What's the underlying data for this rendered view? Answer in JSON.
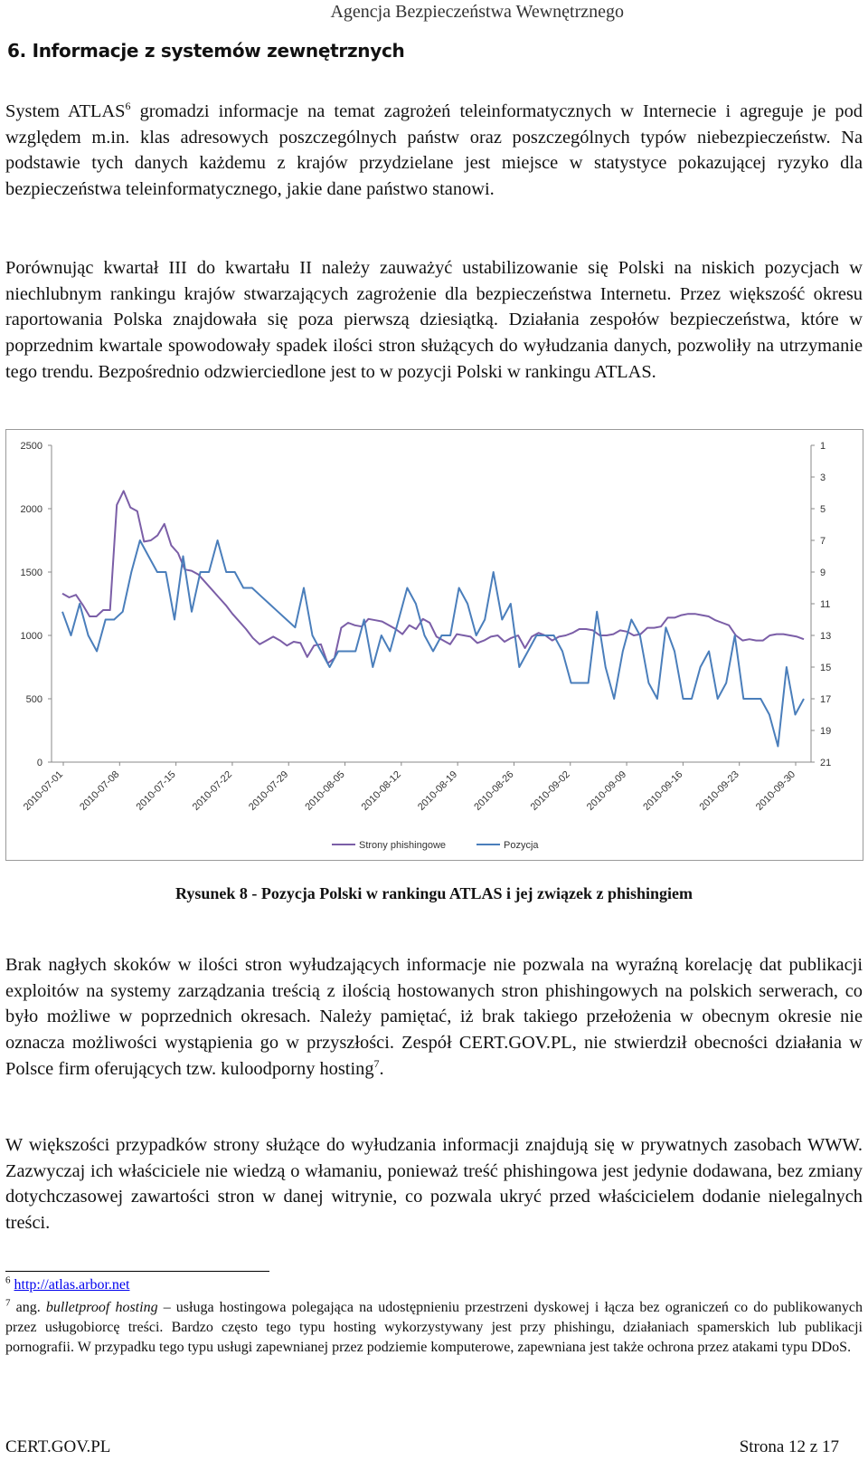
{
  "header": {
    "org": "Agencja Bezpieczeństwa Wewnętrznego"
  },
  "section": {
    "heading": "6.   Informacje z systemów zewnętrznych"
  },
  "paragraphs": {
    "p1_a": "System ATLAS",
    "p1_sup": "6",
    "p1_b": " gromadzi informacje na temat zagrożeń teleinformatycznych w Internecie i agreguje je pod względem m.in. klas adresowych poszczególnych państw oraz poszczególnych typów niebezpieczeństw. Na podstawie tych danych każdemu z krajów przydzielane jest miejsce w statystyce pokazującej ryzyko dla bezpieczeństwa teleinformatycznego, jakie dane państwo stanowi.",
    "p2": "Porównując kwartał III do kwartału II należy zauważyć ustabilizowanie się Polski na niskich pozycjach w niechlubnym rankingu krajów stwarzających zagrożenie dla bezpieczeństwa Internetu. Przez większość okresu raportowania Polska znajdowała się poza pierwszą dziesiątką. Działania zespołów bezpieczeństwa, które w poprzednim kwartale spowodowały spadek ilości stron służących do wyłudzania danych, pozwoliły na utrzymanie tego trendu. Bezpośrednio odzwierciedlone jest to w pozycji Polski w rankingu ATLAS.",
    "p3_a": "Brak nagłych skoków w ilości stron wyłudzających informacje nie pozwala na wyraźną korelację dat publikacji exploitów na systemy zarządzania treścią z ilością hostowanych stron phishingowych na polskich serwerach, co było możliwe w poprzednich okresach. Należy pamiętać, iż brak takiego przełożenia w obecnym okresie nie oznacza możliwości wystąpienia go w przyszłości. Zespół CERT.GOV.PL, nie stwierdził obecności działania w Polsce firm oferujących tzw. kuloodporny hosting",
    "p3_sup": "7",
    "p3_b": ".",
    "p4": "W większości przypadków strony służące do wyłudzania informacji znajdują się w prywatnych zasobach WWW. Zazwyczaj ich właściciele nie wiedzą o włamaniu, ponieważ treść phishingowa jest jedynie dodawana, bez zmiany dotychczasowej zawartości stron w danej witrynie, co pozwala ukryć przed właścicielem dodanie nielegalnych treści."
  },
  "caption": "Rysunek 8 - Pozycja Polski w rankingu ATLAS i jej związek z phishingiem",
  "footnotes": {
    "fn6_num": "6",
    "fn6_link": "http://atlas.arbor.net",
    "fn7_num": "7",
    "fn7_lead": " ang. ",
    "fn7_term": "bulletproof hosting",
    "fn7_text": " – usługa hostingowa polegająca na udostępnieniu przestrzeni dyskowej i łącza bez ograniczeń co do publikowanych przez usługobiorcę treści. Bardzo często tego typu hosting wykorzystywany jest przy phishingu, działaniach spamerskich lub publikacji pornografii. W przypadku tego typu usługi zapewnianej przez podziemie komputerowe, zapewniana jest także ochrona przez atakami typu DDoS."
  },
  "footer": {
    "left": "CERT.GOV.PL",
    "right": "Strona 12 z 17"
  },
  "chart_data": {
    "type": "line",
    "x_labels": [
      "2010-07-01",
      "2010-07-08",
      "2010-07-15",
      "2010-07-22",
      "2010-07-29",
      "2010-08-05",
      "2010-08-12",
      "2010-08-19",
      "2010-08-26",
      "2010-09-02",
      "2010-09-09",
      "2010-09-16",
      "2010-09-23",
      "2010-09-30"
    ],
    "x_start": "2010-07-01",
    "x_end": "2010-09-30",
    "left_axis": {
      "ticks": [
        "0",
        "500",
        "1000",
        "1500",
        "2000",
        "2500"
      ],
      "min": 0,
      "max": 2500
    },
    "right_axis": {
      "ticks": [
        "1",
        "3",
        "5",
        "7",
        "9",
        "11",
        "13",
        "15",
        "17",
        "19",
        "21"
      ],
      "min": 1,
      "max": 21,
      "reversed": true
    },
    "grid": false,
    "legend_position": "bottom",
    "series": [
      {
        "name": "Strony phishingowe",
        "axis": "left",
        "color": "#7b5ea7",
        "values": [
          1330,
          1300,
          1320,
          1240,
          1150,
          1150,
          1200,
          1200,
          2030,
          2140,
          2010,
          1980,
          1740,
          1750,
          1790,
          1880,
          1710,
          1650,
          1520,
          1510,
          1480,
          1420,
          1360,
          1300,
          1240,
          1170,
          1110,
          1050,
          980,
          930,
          960,
          990,
          960,
          920,
          950,
          940,
          830,
          920,
          930,
          780,
          820,
          1060,
          1100,
          1080,
          1070,
          1130,
          1120,
          1110,
          1080,
          1050,
          1010,
          1080,
          1050,
          1130,
          1100,
          990,
          960,
          930,
          1010,
          1000,
          990,
          940,
          960,
          990,
          1000,
          950,
          980,
          1000,
          900,
          990,
          1020,
          1000,
          960,
          990,
          1000,
          1020,
          1050,
          1050,
          1040,
          1000,
          1000,
          1010,
          1040,
          1030,
          1000,
          1010,
          1060,
          1060,
          1070,
          1140,
          1140,
          1160,
          1170,
          1170,
          1160,
          1150,
          1120,
          1100,
          1080,
          1000,
          960,
          970,
          960,
          960,
          1000,
          1010,
          1010,
          1000,
          990,
          970
        ]
      },
      {
        "name": "Pozycja",
        "axis": "right",
        "color": "#4a7ebb",
        "values": [
          11.5,
          13,
          11,
          13,
          14,
          12,
          12,
          11.5,
          9,
          7,
          8,
          9,
          9,
          12,
          8,
          11.5,
          9,
          9,
          7,
          9,
          9,
          10,
          10,
          10.5,
          11,
          11.5,
          12,
          12.5,
          10,
          13,
          14,
          15,
          14,
          14,
          14,
          12,
          15,
          13,
          14,
          12,
          10,
          11,
          13,
          14,
          13,
          13,
          10,
          11,
          13,
          12,
          9,
          12,
          11,
          15,
          14,
          13,
          13,
          13,
          14,
          16,
          16,
          16,
          11.5,
          15,
          17,
          14,
          12,
          13,
          16,
          17,
          12.5,
          14,
          17,
          17,
          15,
          14,
          17,
          16,
          13,
          17,
          17,
          17,
          18,
          20,
          15,
          18,
          17
        ]
      }
    ]
  }
}
